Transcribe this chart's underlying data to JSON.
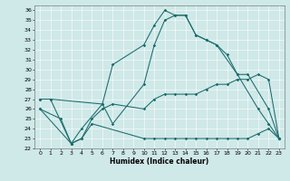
{
  "xlabel": "Humidex (Indice chaleur)",
  "bg_color": "#cfe8e8",
  "line_color": "#1a6b6b",
  "xlim": [
    -0.5,
    23.5
  ],
  "ylim": [
    22,
    36.5
  ],
  "yticks": [
    22,
    23,
    24,
    25,
    26,
    27,
    28,
    29,
    30,
    31,
    32,
    33,
    34,
    35,
    36
  ],
  "xticks": [
    0,
    1,
    2,
    3,
    4,
    5,
    6,
    7,
    8,
    9,
    10,
    11,
    12,
    13,
    14,
    15,
    16,
    17,
    18,
    19,
    20,
    21,
    22,
    23
  ],
  "series": [
    {
      "x": [
        0,
        1,
        6,
        7,
        10,
        11,
        12,
        13,
        14,
        15,
        16,
        17,
        19,
        20,
        22,
        23
      ],
      "y": [
        27,
        27,
        26.5,
        30.5,
        32.5,
        34.5,
        36,
        35.5,
        35.5,
        33.5,
        33,
        32.5,
        29.5,
        29.5,
        26,
        23
      ]
    },
    {
      "x": [
        0,
        1,
        3,
        4,
        6,
        7,
        10,
        11,
        12,
        13,
        14,
        15,
        16,
        17,
        18,
        19,
        21,
        22,
        23
      ],
      "y": [
        27,
        27,
        22.5,
        24,
        26.5,
        24.5,
        28.5,
        32.5,
        35,
        35.5,
        35.5,
        33.5,
        33,
        32.5,
        31.5,
        29.5,
        26,
        24.5,
        23
      ]
    },
    {
      "x": [
        0,
        3,
        4,
        5,
        6,
        7,
        10,
        11,
        12,
        13,
        14,
        15,
        16,
        17,
        18,
        19,
        20,
        21,
        22,
        23
      ],
      "y": [
        26,
        22.5,
        23,
        25,
        26,
        26.5,
        26,
        27,
        27.5,
        27.5,
        27.5,
        27.5,
        28,
        28.5,
        28.5,
        29,
        29,
        29.5,
        29,
        23
      ]
    },
    {
      "x": [
        0,
        2,
        3,
        4,
        5,
        10,
        11,
        12,
        13,
        14,
        15,
        16,
        17,
        18,
        19,
        20,
        21,
        22,
        23
      ],
      "y": [
        26,
        25,
        22.5,
        23,
        24.5,
        23,
        23,
        23,
        23,
        23,
        23,
        23,
        23,
        23,
        23,
        23,
        23.5,
        24,
        23
      ]
    }
  ]
}
